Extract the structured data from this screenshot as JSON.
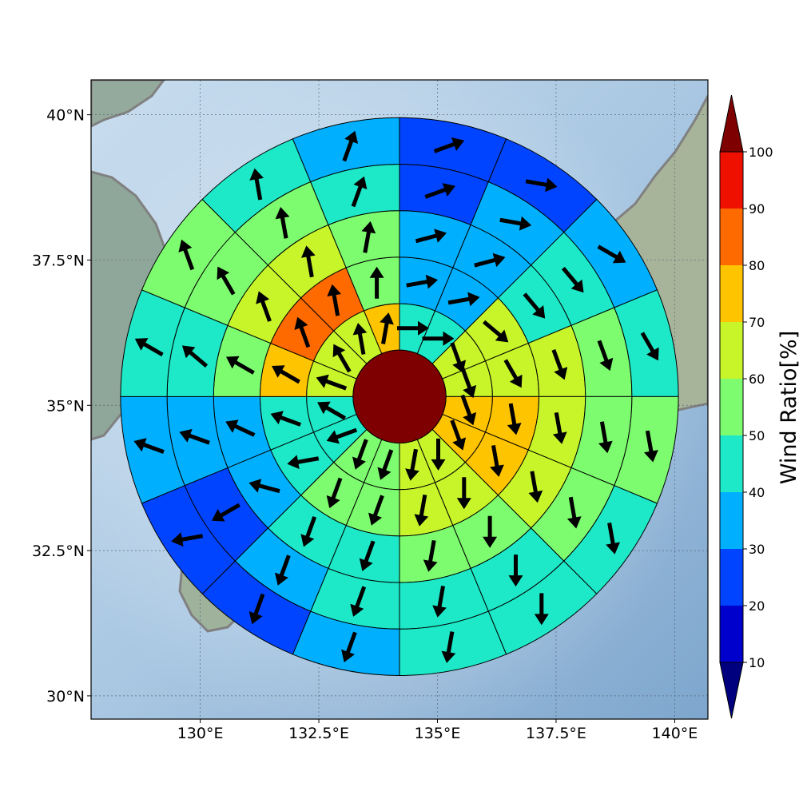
{
  "chart_data": {
    "type": "polar_sector_map",
    "map_extent": {
      "lon": [
        127.7,
        140.7
      ],
      "lat": [
        29.6,
        40.6
      ]
    },
    "gridlines": {
      "lons": [
        130,
        132.5,
        135,
        137.5,
        140
      ],
      "lats": [
        30,
        32.5,
        35,
        37.5,
        40
      ]
    },
    "x_tick_labels": [
      "130°E",
      "132.5°E",
      "135°E",
      "137.5°E",
      "140°E"
    ],
    "y_tick_labels": [
      "30°N",
      "32.5°N",
      "35°N",
      "37.5°N",
      "40°N"
    ],
    "center": {
      "lon": 134.2,
      "lat": 35.15
    },
    "ring_step_deg_lat": 0.8,
    "num_rings": 5,
    "sectors_per_ring": 16,
    "center_circle_value": 100,
    "colorbar": {
      "label": "Wind Ratio[%]",
      "ticks": [
        10,
        20,
        30,
        40,
        50,
        60,
        70,
        80,
        90,
        100
      ],
      "bin_colors": [
        "#0000cd",
        "#0044ff",
        "#00b0ff",
        "#1de9c8",
        "#7cfc6e",
        "#c8f52a",
        "#ffc400",
        "#ff6a00",
        "#f01000"
      ],
      "under_color": "#00007f",
      "over_color": "#7f0000"
    },
    "rings": [
      {
        "ring": 1,
        "values": [
          45,
          45,
          65,
          65,
          75,
          75,
          65,
          65,
          55,
          55,
          45,
          45,
          65,
          65,
          65,
          75
        ],
        "wind_dir_deg": [
          90,
          90,
          160,
          160,
          160,
          160,
          180,
          190,
          200,
          200,
          250,
          300,
          290,
          330,
          350,
          10
        ]
      },
      {
        "ring": 2,
        "values": [
          35,
          35,
          65,
          65,
          75,
          75,
          65,
          65,
          55,
          55,
          45,
          45,
          75,
          85,
          85,
          55
        ],
        "wind_dir_deg": [
          80,
          80,
          130,
          150,
          170,
          170,
          180,
          190,
          200,
          200,
          260,
          290,
          300,
          340,
          350,
          0
        ]
      },
      {
        "ring": 3,
        "values": [
          35,
          35,
          45,
          65,
          65,
          65,
          55,
          55,
          45,
          45,
          35,
          35,
          55,
          65,
          65,
          55
        ],
        "wind_dir_deg": [
          75,
          75,
          140,
          160,
          170,
          170,
          180,
          190,
          200,
          200,
          285,
          295,
          300,
          340,
          350,
          10
        ]
      },
      {
        "ring": 4,
        "values": [
          25,
          35,
          45,
          55,
          55,
          55,
          45,
          45,
          45,
          35,
          25,
          35,
          45,
          55,
          55,
          45
        ],
        "wind_dir_deg": [
          70,
          100,
          140,
          160,
          170,
          170,
          180,
          190,
          200,
          200,
          240,
          290,
          310,
          330,
          350,
          20
        ]
      },
      {
        "ring": 5,
        "values": [
          25,
          25,
          35,
          45,
          55,
          45,
          45,
          45,
          35,
          25,
          25,
          35,
          45,
          55,
          45,
          35
        ],
        "wind_dir_deg": [
          70,
          100,
          120,
          150,
          170,
          170,
          180,
          190,
          200,
          200,
          260,
          290,
          300,
          340,
          350,
          20
        ]
      }
    ]
  }
}
